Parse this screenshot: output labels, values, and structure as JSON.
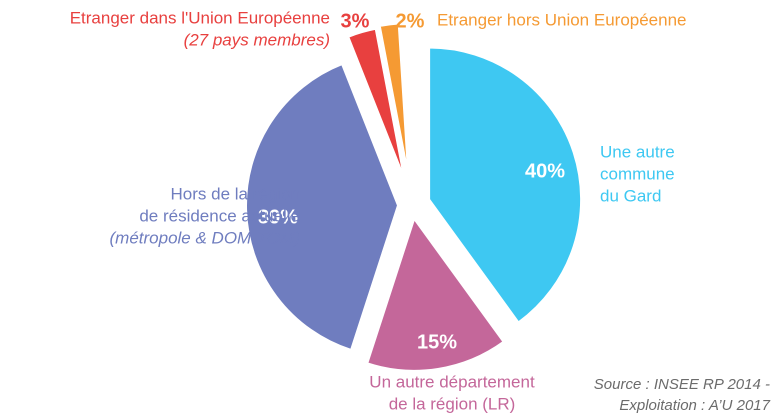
{
  "chart_data": {
    "type": "pie",
    "categories": [
      [
        "Une autre",
        "commune",
        "du Gard"
      ],
      [
        "Un autre département",
        "de la région (LR)"
      ],
      [
        "Hors de la région",
        "de résidence actuelle"
      ],
      [
        "Etranger dans l'Union Européenne"
      ],
      [
        "Etranger hors Union Européenne"
      ]
    ],
    "sublabels": [
      null,
      null,
      "(métropole & DOM-TOM)",
      "(27 pays membres)",
      null
    ],
    "values": [
      40,
      15,
      39,
      3,
      2
    ],
    "value_labels": [
      "40%",
      "15%",
      "39%",
      "3%",
      "2%"
    ],
    "colors": [
      "#3ec8f2",
      "#c4679a",
      "#6f7dbf",
      "#e8403f",
      "#f59a33"
    ],
    "source": [
      "Source : INSEE RP 2014 -",
      "Exploitation : A’U 2017"
    ]
  }
}
